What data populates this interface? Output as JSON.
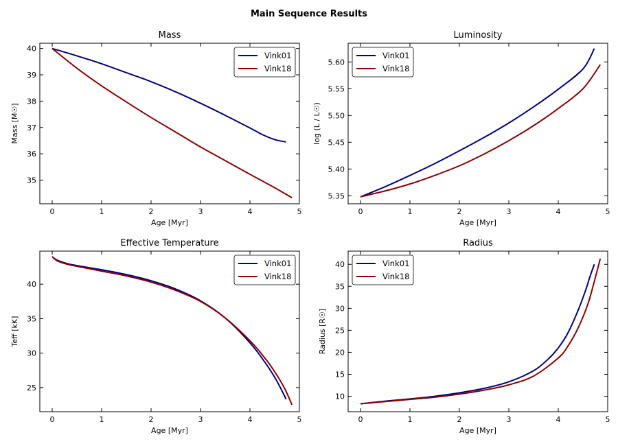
{
  "suptitle": "Main Sequence Results",
  "colors": {
    "Vink01": "#000080",
    "Vink18": "#8b0000"
  },
  "chart_data": [
    {
      "id": "mass",
      "type": "line",
      "title": "Mass",
      "xlabel": "Age [Myr]",
      "ylabel": "Mass [M☉]",
      "xlim": [
        -0.25,
        5.0
      ],
      "ylim": [
        34.1,
        40.2
      ],
      "xticks": [
        0,
        1,
        2,
        3,
        4,
        5
      ],
      "yticks": [
        35,
        36,
        37,
        38,
        39,
        40
      ],
      "ytick_labels": [
        "35",
        "36",
        "37",
        "38",
        "39",
        "40"
      ],
      "legend": "upper-right",
      "series": [
        {
          "name": "Vink01",
          "x": [
            0,
            0.5,
            1,
            1.5,
            2,
            2.5,
            3,
            3.5,
            4,
            4.25,
            4.5,
            4.73
          ],
          "y": [
            40.0,
            39.72,
            39.42,
            39.08,
            38.74,
            38.35,
            37.92,
            37.46,
            36.98,
            36.73,
            36.54,
            36.45
          ]
        },
        {
          "name": "Vink18",
          "x": [
            0,
            0.5,
            1,
            1.5,
            2,
            2.5,
            3,
            3.5,
            4,
            4.5,
            4.85
          ],
          "y": [
            40.0,
            39.25,
            38.58,
            37.97,
            37.38,
            36.82,
            36.26,
            35.74,
            35.22,
            34.71,
            34.33
          ]
        }
      ]
    },
    {
      "id": "lum",
      "type": "line",
      "title": "Luminosity",
      "xlabel": "Age [Myr]",
      "ylabel": "log (L / L☉)",
      "xlim": [
        -0.25,
        5.0
      ],
      "ylim": [
        5.335,
        5.635
      ],
      "xticks": [
        0,
        1,
        2,
        3,
        4,
        5
      ],
      "yticks": [
        5.35,
        5.4,
        5.45,
        5.5,
        5.55,
        5.6
      ],
      "ytick_labels": [
        "5.35",
        "5.40",
        "5.45",
        "5.50",
        "5.55",
        "5.60"
      ],
      "legend": "upper-left",
      "series": [
        {
          "name": "Vink01",
          "x": [
            0,
            0.5,
            1,
            1.5,
            2,
            2.5,
            3,
            3.5,
            4,
            4.5,
            4.73
          ],
          "y": [
            5.348,
            5.367,
            5.388,
            5.41,
            5.434,
            5.459,
            5.486,
            5.516,
            5.549,
            5.587,
            5.625
          ]
        },
        {
          "name": "Vink18",
          "x": [
            0,
            0.5,
            1,
            1.5,
            2,
            2.5,
            3,
            3.5,
            4,
            4.5,
            4.85
          ],
          "y": [
            5.348,
            5.359,
            5.372,
            5.388,
            5.406,
            5.428,
            5.453,
            5.481,
            5.513,
            5.55,
            5.595
          ]
        }
      ]
    },
    {
      "id": "teff",
      "type": "line",
      "title": "Effective Temperature",
      "xlabel": "Age [Myr]",
      "ylabel": "Teff [kK]",
      "xlim": [
        -0.25,
        5.0
      ],
      "ylim": [
        21.5,
        44.8
      ],
      "xticks": [
        0,
        1,
        2,
        3,
        4,
        5
      ],
      "yticks": [
        25,
        30,
        35,
        40
      ],
      "ytick_labels": [
        "25",
        "30",
        "35",
        "40"
      ],
      "legend": "upper-right",
      "series": [
        {
          "name": "Vink01",
          "x": [
            0,
            0.1,
            0.3,
            0.5,
            1,
            1.5,
            2,
            2.5,
            3,
            3.5,
            4,
            4.3,
            4.5,
            4.65,
            4.73
          ],
          "y": [
            44.0,
            43.5,
            43.0,
            42.7,
            42.1,
            41.4,
            40.5,
            39.3,
            37.6,
            35.1,
            31.5,
            28.7,
            26.5,
            24.5,
            23.3
          ]
        },
        {
          "name": "Vink18",
          "x": [
            0,
            0.1,
            0.3,
            0.5,
            1,
            1.5,
            2,
            2.5,
            3,
            3.5,
            4,
            4.3,
            4.5,
            4.7,
            4.85
          ],
          "y": [
            44.0,
            43.4,
            42.9,
            42.6,
            41.9,
            41.2,
            40.3,
            39.1,
            37.5,
            35.1,
            31.8,
            29.3,
            27.3,
            24.9,
            22.5
          ]
        }
      ]
    },
    {
      "id": "radius",
      "type": "line",
      "title": "Radius",
      "xlabel": "Age [Myr]",
      "ylabel": "Radius [R☉]",
      "xlim": [
        -0.25,
        5.0
      ],
      "ylim": [
        6.5,
        43.0
      ],
      "xticks": [
        0,
        1,
        2,
        3,
        4,
        5
      ],
      "yticks": [
        10,
        15,
        20,
        25,
        30,
        35,
        40
      ],
      "ytick_labels": [
        "10",
        "15",
        "20",
        "25",
        "30",
        "35",
        "40"
      ],
      "legend": "upper-left",
      "series": [
        {
          "name": "Vink01",
          "x": [
            0,
            0.5,
            1,
            1.5,
            2,
            2.5,
            3,
            3.5,
            3.8,
            4,
            4.2,
            4.4,
            4.55,
            4.65,
            4.73
          ],
          "y": [
            8.3,
            8.9,
            9.4,
            10.0,
            10.8,
            11.8,
            13.3,
            15.8,
            18.5,
            21.0,
            24.5,
            29.5,
            34.0,
            37.5,
            40.0
          ]
        },
        {
          "name": "Vink18",
          "x": [
            0,
            0.5,
            1,
            1.5,
            2,
            2.5,
            3,
            3.5,
            4,
            4.2,
            4.4,
            4.6,
            4.75,
            4.85
          ],
          "y": [
            8.3,
            8.8,
            9.3,
            9.8,
            10.5,
            11.4,
            12.6,
            14.6,
            18.7,
            21.5,
            25.5,
            31.0,
            37.0,
            41.3
          ]
        }
      ]
    }
  ]
}
